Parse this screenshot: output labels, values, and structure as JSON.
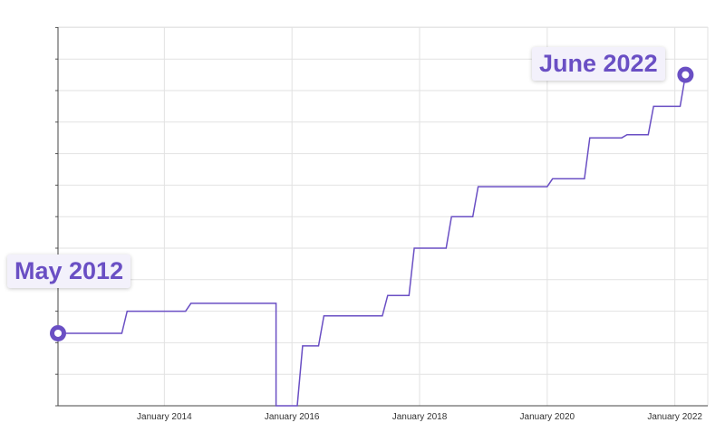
{
  "chart_data": {
    "type": "line",
    "title": "",
    "xlabel": "",
    "ylabel": "",
    "x_ticks": [
      "January 2014",
      "January 2016",
      "January 2018",
      "January 2020",
      "January 2022"
    ],
    "grid": true,
    "line_color": "#6a4fc4",
    "y_tick_labels_shown": false,
    "series": [
      {
        "x": [
          "2012-05",
          "2013-05",
          "2013-06",
          "2014-05",
          "2014-06",
          "2015-09",
          "2015-10",
          "2015-10",
          "2016-01",
          "2016-02",
          "2016-03",
          "2016-06",
          "2016-07",
          "2017-06",
          "2017-07",
          "2017-11",
          "2017-12",
          "2018-06",
          "2018-07",
          "2018-11",
          "2018-12",
          "2020-01",
          "2020-02",
          "2020-08",
          "2020-09",
          "2021-03",
          "2021-04",
          "2021-08",
          "2021-09",
          "2022-02",
          "2022-03"
        ],
        "values": [
          2.3,
          2.3,
          3.0,
          3.0,
          3.25,
          3.25,
          3.25,
          0,
          0,
          0,
          1.9,
          1.9,
          2.85,
          2.85,
          3.5,
          3.5,
          5.0,
          5.0,
          6.0,
          6.0,
          6.95,
          6.95,
          7.2,
          7.2,
          8.5,
          8.5,
          8.6,
          8.6,
          9.5,
          9.5,
          10.5
        ]
      }
    ],
    "markers": [
      {
        "x": "2012-05",
        "label": "May 2012"
      },
      {
        "x": "2022-06",
        "label": "June 2022"
      }
    ]
  },
  "annotations": {
    "start_label": "May 2012",
    "end_label": "June 2022"
  }
}
